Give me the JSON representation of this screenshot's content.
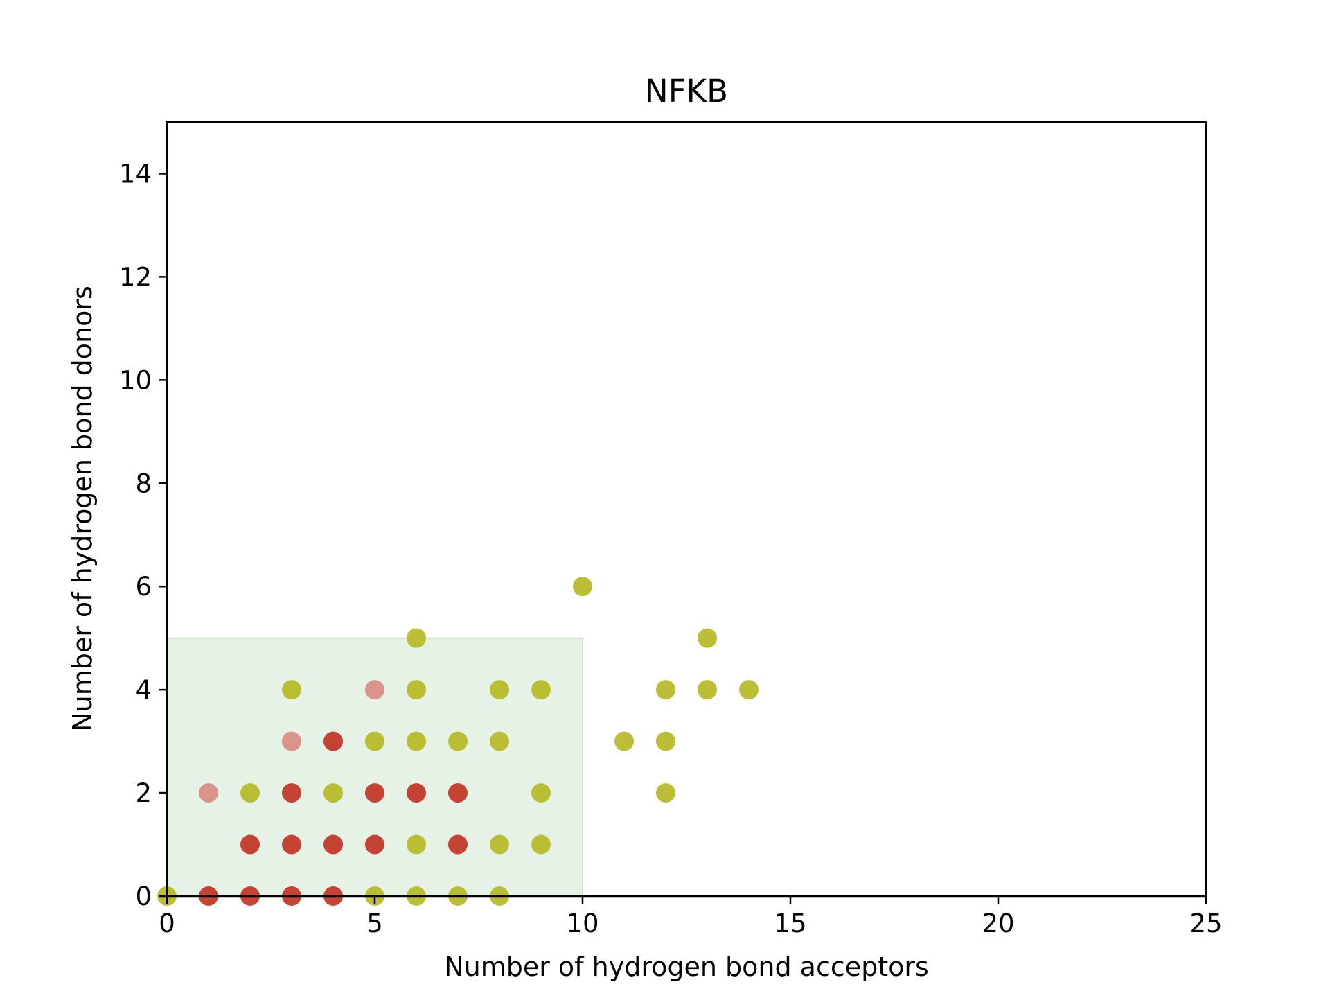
{
  "chart_data": {
    "type": "scatter",
    "title": "NFKB",
    "xlabel": "Number of hydrogen bond acceptors",
    "ylabel": "Number of hydrogen bond donors",
    "xlim": [
      0,
      25
    ],
    "ylim": [
      0,
      15
    ],
    "xticks": [
      0,
      5,
      10,
      15,
      20,
      25
    ],
    "yticks": [
      0,
      2,
      4,
      6,
      8,
      10,
      12,
      14
    ],
    "grid": false,
    "legend": "none",
    "region": {
      "x": [
        0,
        10
      ],
      "y": [
        0,
        5
      ],
      "color": "#c8e3c8"
    },
    "series": [
      {
        "color": "#b5b81f",
        "points": [
          [
            0,
            0
          ],
          [
            2,
            2
          ],
          [
            3,
            4
          ],
          [
            4,
            2
          ],
          [
            5,
            3
          ],
          [
            5,
            0
          ],
          [
            6,
            5
          ],
          [
            6,
            4
          ],
          [
            6,
            3
          ],
          [
            6,
            1
          ],
          [
            6,
            0
          ],
          [
            7,
            3
          ],
          [
            7,
            0
          ],
          [
            8,
            4
          ],
          [
            8,
            3
          ],
          [
            8,
            1
          ],
          [
            8,
            0
          ],
          [
            9,
            4
          ],
          [
            9,
            2
          ],
          [
            9,
            1
          ],
          [
            10,
            6
          ],
          [
            11,
            3
          ],
          [
            12,
            4
          ],
          [
            12,
            3
          ],
          [
            12,
            2
          ],
          [
            13,
            5
          ],
          [
            13,
            4
          ],
          [
            14,
            4
          ]
        ]
      },
      {
        "color": "#c0301e",
        "points": [
          [
            1,
            0
          ],
          [
            2,
            1
          ],
          [
            2,
            0
          ],
          [
            3,
            2
          ],
          [
            3,
            1
          ],
          [
            3,
            0
          ],
          [
            4,
            3
          ],
          [
            4,
            1
          ],
          [
            4,
            0
          ],
          [
            5,
            2
          ],
          [
            5,
            1
          ],
          [
            6,
            2
          ],
          [
            7,
            2
          ],
          [
            7,
            1
          ]
        ]
      },
      {
        "color": "#d98a80",
        "points": [
          [
            1,
            2
          ],
          [
            3,
            3
          ],
          [
            5,
            4
          ]
        ]
      }
    ]
  }
}
